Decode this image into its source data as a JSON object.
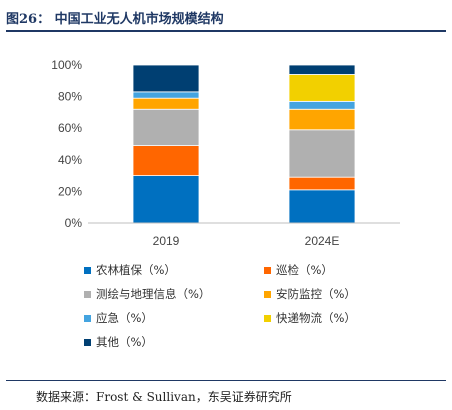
{
  "figure": {
    "title": "图26： 中国工业无人机市场规模结构",
    "source": "数据来源：Frost & Sullivan，东吴证券研究所"
  },
  "chart_data": {
    "type": "bar",
    "stacked": true,
    "categories": [
      "2019",
      "2024E"
    ],
    "ylim": [
      0,
      100
    ],
    "yticks": [
      "0%",
      "20%",
      "40%",
      "60%",
      "80%",
      "100%"
    ],
    "grid": false,
    "legend_position": "bottom",
    "series": [
      {
        "name": "农林植保（%）",
        "color": "#0070c0",
        "values": [
          30,
          21
        ]
      },
      {
        "name": "巡检（%）",
        "color": "#ff6600",
        "values": [
          19,
          8
        ]
      },
      {
        "name": "测绘与地理信息（%）",
        "color": "#b0b0b0",
        "values": [
          23,
          30
        ]
      },
      {
        "name": "安防监控（%）",
        "color": "#ffa500",
        "values": [
          7,
          13
        ]
      },
      {
        "name": "应急（%）",
        "color": "#44a4e0",
        "values": [
          4,
          5
        ]
      },
      {
        "name": "快递物流（%）",
        "color": "#f2d000",
        "values": [
          0,
          17
        ]
      },
      {
        "name": "其他（%）",
        "color": "#003f72",
        "values": [
          17,
          6
        ]
      }
    ]
  }
}
